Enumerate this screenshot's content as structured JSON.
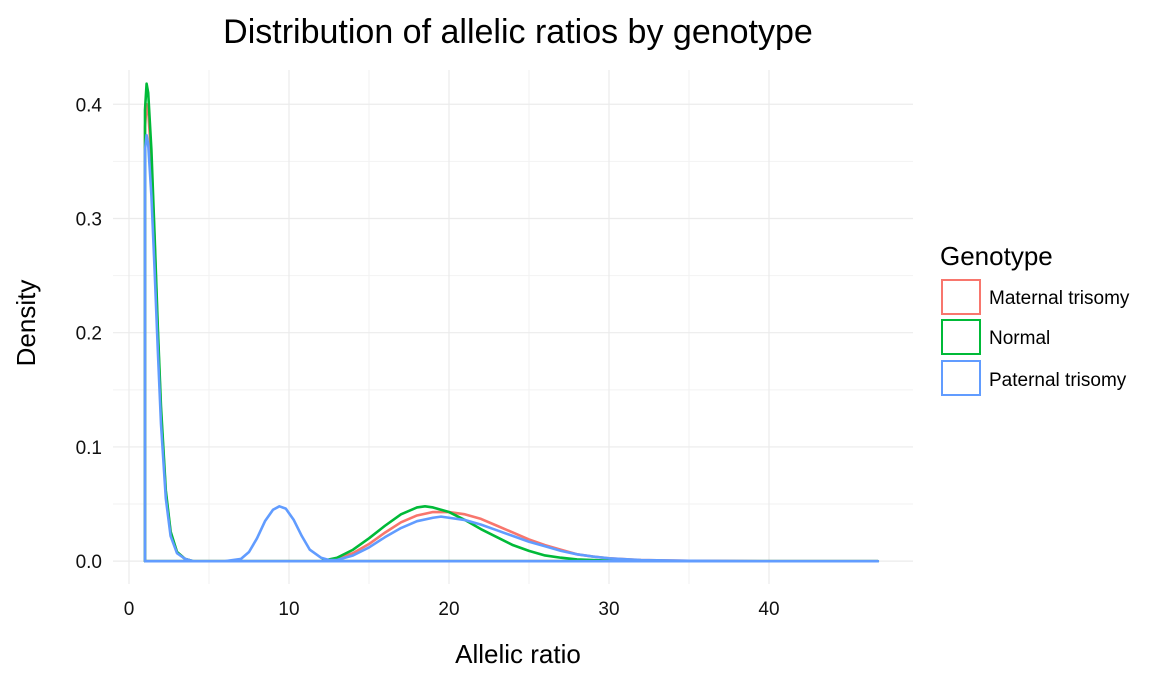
{
  "chart_data": {
    "type": "line",
    "title": "Distribution of allelic ratios by genotype",
    "xlabel": "Allelic ratio",
    "ylabel": "Density",
    "xlim": [
      -1,
      49
    ],
    "ylim": [
      -0.02,
      0.43
    ],
    "x_ticks": [
      0,
      10,
      20,
      30,
      40
    ],
    "y_ticks": [
      0.0,
      0.1,
      0.2,
      0.3,
      0.4
    ],
    "x_tick_labels": [
      "0",
      "10",
      "20",
      "30",
      "40"
    ],
    "y_tick_labels": [
      "0.0",
      "0.1",
      "0.2",
      "0.3",
      "0.4"
    ],
    "grid": true,
    "legend": {
      "title": "Genotype",
      "placement": "right"
    },
    "series": [
      {
        "name": "Maternal trisomy",
        "color": "#F8766D",
        "x": [
          1.0,
          1.0,
          1.1,
          1.2,
          1.4,
          1.6,
          1.8,
          2.0,
          2.3,
          2.6,
          3.0,
          3.5,
          4.0,
          6.0,
          9.0,
          12.0,
          13.0,
          14.0,
          15.0,
          16.0,
          17.0,
          18.0,
          19.0,
          20.0,
          21.0,
          22.0,
          23.0,
          24.0,
          25.0,
          26.0,
          27.0,
          28.0,
          29.0,
          30.0,
          32.0,
          35.0,
          40.0,
          46.8
        ],
        "y": [
          0.0,
          0.38,
          0.4,
          0.395,
          0.35,
          0.28,
          0.2,
          0.13,
          0.06,
          0.025,
          0.008,
          0.002,
          0.0,
          0.0,
          0.0,
          0.0,
          0.002,
          0.007,
          0.015,
          0.025,
          0.034,
          0.04,
          0.043,
          0.043,
          0.041,
          0.037,
          0.031,
          0.025,
          0.019,
          0.014,
          0.01,
          0.006,
          0.004,
          0.0025,
          0.001,
          0.0003,
          0.0,
          0.0
        ]
      },
      {
        "name": "Normal",
        "color": "#00BA38",
        "x": [
          1.0,
          1.0,
          1.1,
          1.2,
          1.4,
          1.6,
          1.8,
          2.0,
          2.3,
          2.6,
          3.0,
          3.5,
          4.0,
          6.0,
          9.0,
          12.0,
          13.0,
          14.0,
          15.0,
          16.0,
          17.0,
          18.0,
          18.5,
          19.0,
          20.0,
          21.0,
          22.0,
          23.0,
          24.0,
          25.0,
          26.0,
          27.0,
          28.0,
          30.0,
          32.0,
          35.0,
          40.0,
          46.8
        ],
        "y": [
          0.0,
          0.395,
          0.418,
          0.41,
          0.36,
          0.285,
          0.205,
          0.135,
          0.062,
          0.026,
          0.008,
          0.002,
          0.0,
          0.0,
          0.0,
          0.0,
          0.003,
          0.01,
          0.02,
          0.031,
          0.041,
          0.047,
          0.048,
          0.047,
          0.043,
          0.036,
          0.028,
          0.021,
          0.014,
          0.009,
          0.005,
          0.003,
          0.0015,
          0.0004,
          0.0001,
          0.0,
          0.0,
          0.0
        ]
      },
      {
        "name": "Paternal trisomy",
        "color": "#619CFF",
        "x": [
          1.0,
          1.0,
          1.1,
          1.2,
          1.4,
          1.6,
          1.8,
          2.0,
          2.3,
          2.6,
          3.0,
          3.5,
          4.0,
          6.0,
          7.0,
          7.5,
          8.0,
          8.5,
          9.0,
          9.4,
          9.8,
          10.3,
          10.8,
          11.3,
          12.0,
          12.5,
          13.0,
          14.0,
          15.0,
          16.0,
          17.0,
          18.0,
          19.0,
          19.5,
          20.0,
          21.0,
          22.0,
          23.0,
          24.0,
          25.0,
          26.0,
          27.0,
          28.0,
          29.0,
          30.0,
          32.0,
          35.0,
          40.0,
          46.8
        ],
        "y": [
          0.0,
          0.36,
          0.373,
          0.365,
          0.32,
          0.255,
          0.185,
          0.12,
          0.055,
          0.022,
          0.007,
          0.002,
          0.0,
          0.0,
          0.002,
          0.008,
          0.02,
          0.035,
          0.045,
          0.048,
          0.046,
          0.036,
          0.022,
          0.01,
          0.003,
          0.001,
          0.001,
          0.005,
          0.012,
          0.021,
          0.029,
          0.035,
          0.038,
          0.039,
          0.038,
          0.036,
          0.032,
          0.027,
          0.022,
          0.017,
          0.013,
          0.009,
          0.006,
          0.004,
          0.0025,
          0.001,
          0.0003,
          0.0,
          0.0
        ]
      }
    ]
  }
}
